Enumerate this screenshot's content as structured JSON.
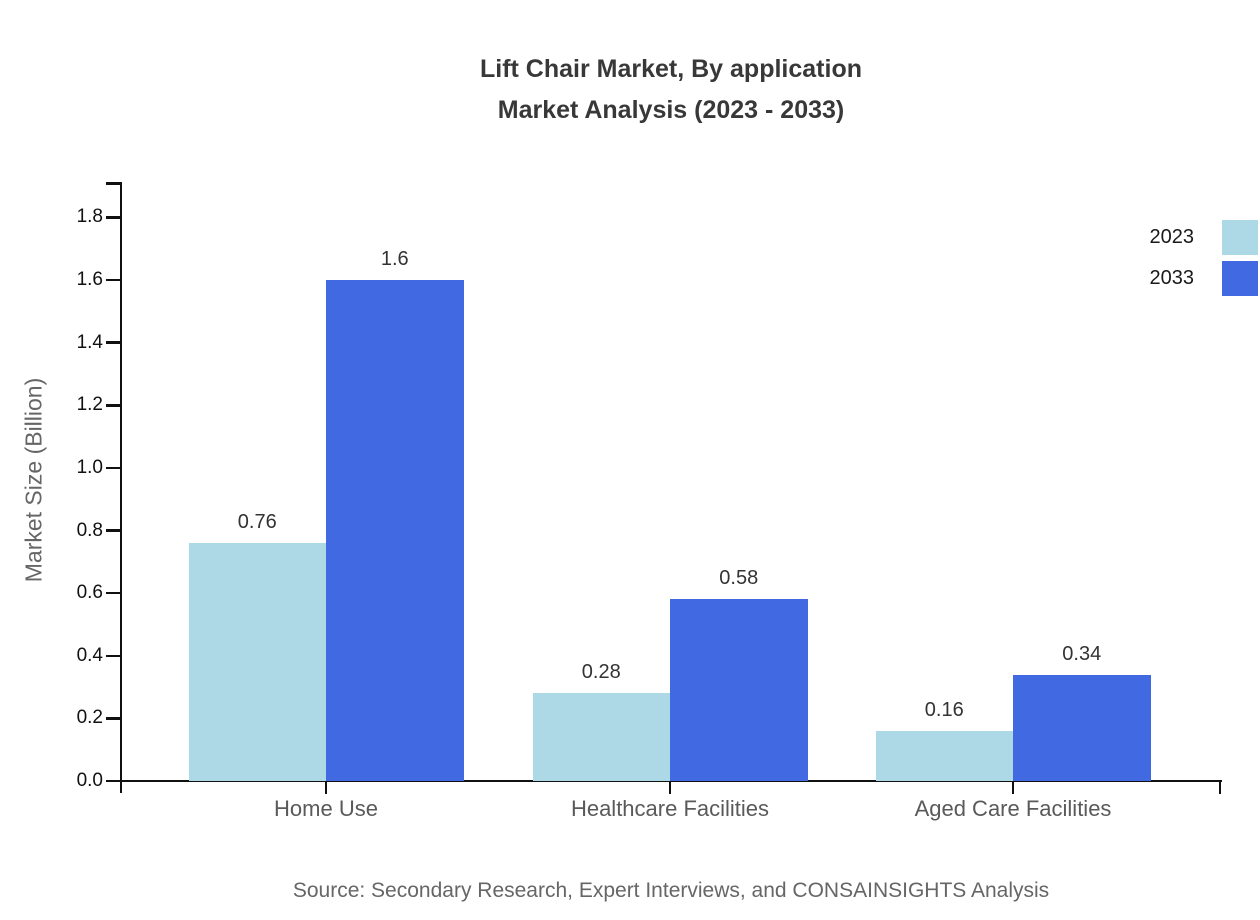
{
  "title": {
    "line1": "Lift Chair Market, By application",
    "line2": "Market Analysis (2023 - 2033)"
  },
  "source": "Source: Secondary Research, Expert Interviews, and CONSAINSIGHTS Analysis",
  "legend": {
    "items": [
      {
        "label": "2023",
        "color": "#ADD8E6"
      },
      {
        "label": "2033",
        "color": "#4169E1"
      }
    ]
  },
  "chart_data": {
    "type": "bar",
    "title": "Lift Chair Market, By application Market Analysis (2023 - 2033)",
    "categories": [
      "Home Use",
      "Healthcare Facilities",
      "Aged Care Facilities"
    ],
    "series": [
      {
        "name": "2023",
        "color": "#ADD8E6",
        "values": [
          0.76,
          0.28,
          0.16
        ]
      },
      {
        "name": "2033",
        "color": "#4169E1",
        "values": [
          1.6,
          0.58,
          0.34
        ]
      }
    ],
    "xlabel": "",
    "ylabel": "Market Size (Billion)",
    "ylim": [
      0,
      1.9
    ],
    "yticks": [
      0.0,
      0.2,
      0.4,
      0.6,
      0.8,
      1.0,
      1.2,
      1.4,
      1.6,
      1.8
    ],
    "grid": false,
    "legend_position": "top-right",
    "value_labels_shown": true
  }
}
